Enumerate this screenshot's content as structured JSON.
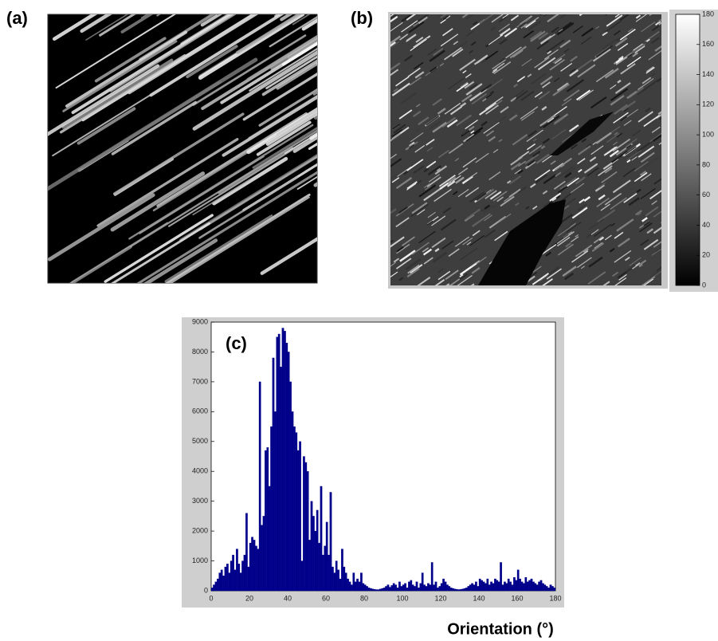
{
  "images": [
    {
      "label": "(a)"
    },
    {
      "label": "(b)",
      "colorbar": {
        "ylim": [
          0,
          180
        ],
        "yticks": [
          0,
          20,
          40,
          60,
          80,
          100,
          120,
          140,
          160,
          180
        ]
      }
    }
  ],
  "chart_data": {
    "type": "histogram",
    "annotation": "(c)",
    "xlabel": "Orientation (°)",
    "color": "#00008b",
    "bins": [
      0,
      1,
      2,
      3,
      4,
      5,
      6,
      7,
      8,
      9,
      10,
      11,
      12,
      13,
      14,
      15,
      16,
      17,
      18,
      19,
      20,
      21,
      22,
      23,
      24,
      25,
      26,
      27,
      28,
      29,
      30,
      31,
      32,
      33,
      34,
      35,
      36,
      37,
      38,
      39,
      40,
      41,
      42,
      43,
      44,
      45,
      46,
      47,
      48,
      49,
      50,
      51,
      52,
      53,
      54,
      55,
      56,
      57,
      58,
      59,
      60,
      61,
      62,
      63,
      64,
      65,
      66,
      67,
      68,
      69,
      70,
      71,
      72,
      73,
      74,
      75,
      76,
      77,
      78,
      79,
      80,
      81,
      82,
      83,
      84,
      85,
      86,
      87,
      88,
      89,
      90,
      91,
      92,
      93,
      94,
      95,
      96,
      97,
      98,
      99,
      100,
      101,
      102,
      103,
      104,
      105,
      106,
      107,
      108,
      109,
      110,
      111,
      112,
      113,
      114,
      115,
      116,
      117,
      118,
      119,
      120,
      121,
      122,
      123,
      124,
      125,
      126,
      127,
      128,
      129,
      130,
      131,
      132,
      133,
      134,
      135,
      136,
      137,
      138,
      139,
      140,
      141,
      142,
      143,
      144,
      145,
      146,
      147,
      148,
      149,
      150,
      151,
      152,
      153,
      154,
      155,
      156,
      157,
      158,
      159,
      160,
      161,
      162,
      163,
      164,
      165,
      166,
      167,
      168,
      169,
      170,
      171,
      172,
      173,
      174,
      175,
      176,
      177,
      178,
      179,
      180
    ],
    "values": [
      100,
      200,
      300,
      400,
      600,
      700,
      500,
      800,
      900,
      600,
      1000,
      1200,
      700,
      1400,
      900,
      600,
      1000,
      1200,
      2600,
      800,
      1600,
      1800,
      1700,
      1500,
      1400,
      7000,
      2200,
      2500,
      4700,
      4800,
      3500,
      5500,
      7800,
      6000,
      8500,
      8600,
      7500,
      8800,
      8700,
      8300,
      8000,
      7000,
      6000,
      5500,
      5300,
      4700,
      5000,
      1000,
      4500,
      4300,
      4000,
      1700,
      3000,
      2500,
      2000,
      2700,
      1600,
      3500,
      1200,
      1500,
      2300,
      1200,
      3300,
      800,
      600,
      1000,
      700,
      400,
      1400,
      800,
      600,
      400,
      300,
      200,
      600,
      300,
      400,
      300,
      600,
      250,
      200,
      150,
      100,
      80,
      60,
      50,
      40,
      40,
      60,
      80,
      100,
      150,
      200,
      120,
      180,
      250,
      200,
      100,
      300,
      150,
      200,
      250,
      100,
      300,
      350,
      200,
      150,
      300,
      100,
      250,
      600,
      200,
      150,
      250,
      200,
      950,
      200,
      300,
      100,
      150,
      250,
      400,
      300,
      200,
      150,
      100,
      80,
      60,
      50,
      40,
      50,
      60,
      80,
      100,
      150,
      200,
      250,
      200,
      300,
      150,
      400,
      350,
      300,
      250,
      400,
      200,
      300,
      250,
      400,
      350,
      300,
      950,
      200,
      300,
      250,
      400,
      300,
      200,
      450,
      350,
      700,
      400,
      300,
      250,
      450,
      300,
      350,
      400,
      300,
      250,
      200,
      300,
      350,
      250,
      200,
      150,
      100,
      200,
      150,
      100
    ],
    "xlim": [
      0,
      180
    ],
    "xticks": [
      0,
      20,
      40,
      60,
      80,
      100,
      120,
      140,
      160,
      180
    ],
    "ylim": [
      0,
      9000
    ],
    "yticks": [
      0,
      1000,
      2000,
      3000,
      4000,
      5000,
      6000,
      7000,
      8000,
      9000
    ]
  }
}
